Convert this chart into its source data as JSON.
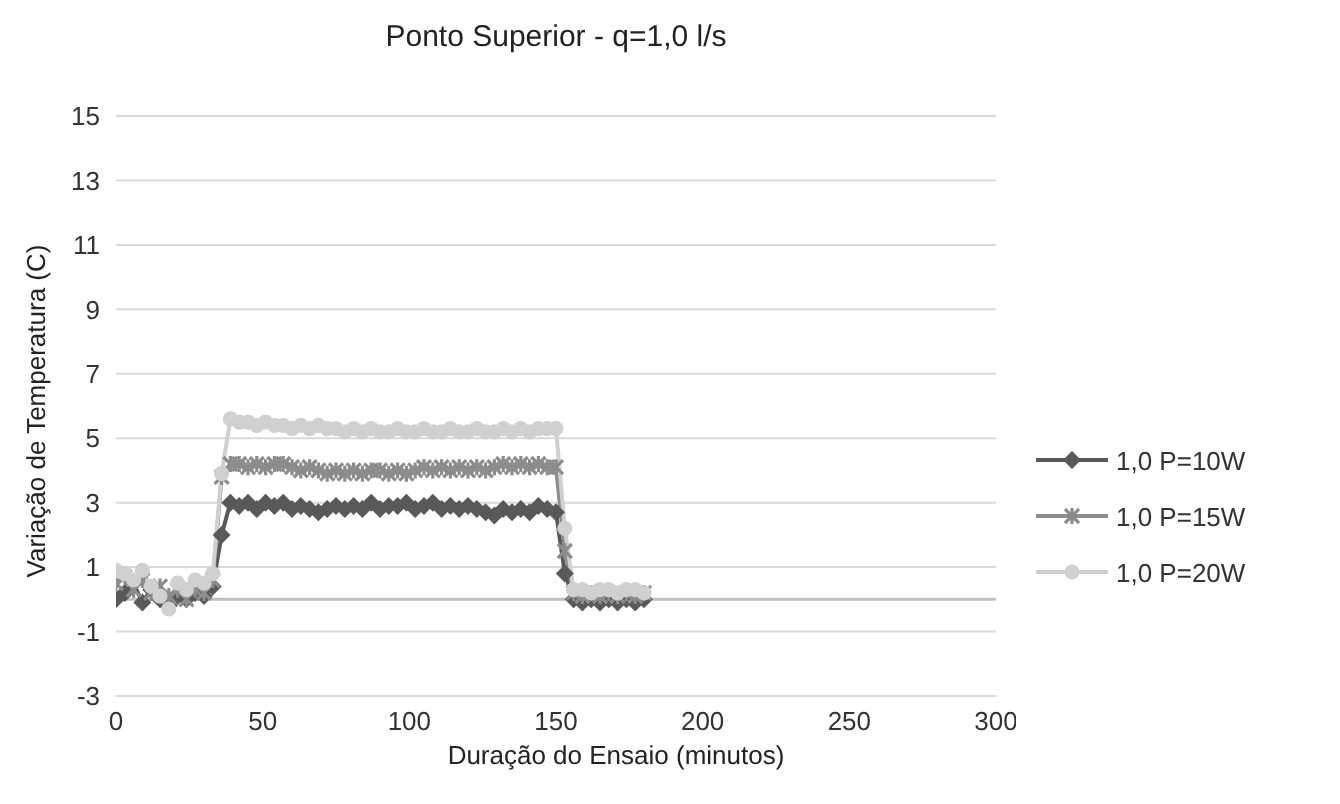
{
  "chart_data": {
    "type": "line",
    "title": "Ponto Superior - q=1,0 l/s",
    "xlabel": "Duração do Ensaio (minutos)",
    "ylabel": "Variação de Temperatura (C)",
    "x": [
      0,
      3,
      6,
      9,
      12,
      15,
      18,
      21,
      24,
      27,
      30,
      33,
      36,
      39,
      42,
      45,
      48,
      51,
      54,
      57,
      60,
      63,
      66,
      69,
      72,
      75,
      78,
      81,
      84,
      87,
      90,
      93,
      96,
      99,
      102,
      105,
      108,
      111,
      114,
      117,
      120,
      123,
      126,
      129,
      132,
      135,
      138,
      141,
      144,
      147,
      150,
      153,
      156,
      159,
      162,
      165,
      168,
      171,
      174,
      177,
      180
    ],
    "series": [
      {
        "name": "1,0 P=10W",
        "color": "#595959",
        "marker": "diamond",
        "values": [
          0.0,
          0.2,
          0.5,
          -0.1,
          0.3,
          0.0,
          -0.2,
          0.1,
          0.0,
          0.2,
          0.1,
          0.4,
          2.0,
          3.0,
          2.9,
          3.0,
          2.8,
          3.0,
          2.9,
          3.0,
          2.8,
          2.9,
          2.8,
          2.7,
          2.8,
          2.9,
          2.8,
          2.9,
          2.8,
          3.0,
          2.8,
          2.9,
          2.9,
          3.0,
          2.8,
          2.9,
          3.0,
          2.8,
          2.9,
          2.8,
          2.9,
          2.8,
          2.7,
          2.6,
          2.8,
          2.7,
          2.8,
          2.7,
          2.9,
          2.8,
          2.7,
          0.8,
          0.0,
          -0.1,
          0.0,
          -0.1,
          0.0,
          -0.1,
          0.0,
          -0.1,
          0.0
        ]
      },
      {
        "name": "1,0 P=15W",
        "color": "#8c8c8c",
        "marker": "cross",
        "values": [
          0.5,
          0.7,
          0.3,
          0.6,
          0.2,
          0.4,
          0.1,
          0.3,
          0.0,
          0.3,
          0.2,
          0.6,
          3.8,
          4.2,
          4.2,
          4.1,
          4.2,
          4.1,
          4.2,
          4.2,
          4.1,
          4.0,
          4.1,
          4.0,
          3.9,
          4.0,
          3.9,
          4.0,
          3.9,
          4.0,
          4.0,
          3.9,
          4.0,
          3.9,
          4.0,
          4.1,
          4.0,
          4.1,
          4.0,
          4.1,
          4.0,
          4.1,
          4.0,
          4.1,
          4.2,
          4.1,
          4.2,
          4.1,
          4.2,
          4.1,
          4.1,
          1.5,
          0.2,
          0.1,
          0.2,
          0.1,
          0.2,
          0.1,
          0.2,
          0.1,
          0.2
        ]
      },
      {
        "name": "1,0 P=20W",
        "color": "#d0d0d0",
        "marker": "circle",
        "values": [
          0.9,
          0.8,
          0.6,
          0.9,
          0.4,
          0.1,
          -0.3,
          0.5,
          0.3,
          0.6,
          0.5,
          0.8,
          3.9,
          5.6,
          5.5,
          5.5,
          5.4,
          5.5,
          5.4,
          5.4,
          5.3,
          5.4,
          5.3,
          5.4,
          5.3,
          5.3,
          5.2,
          5.3,
          5.2,
          5.3,
          5.2,
          5.2,
          5.3,
          5.2,
          5.2,
          5.3,
          5.2,
          5.2,
          5.3,
          5.2,
          5.2,
          5.3,
          5.2,
          5.2,
          5.3,
          5.2,
          5.3,
          5.2,
          5.3,
          5.3,
          5.3,
          2.2,
          0.3,
          0.3,
          0.2,
          0.3,
          0.3,
          0.2,
          0.3,
          0.3,
          0.2
        ]
      }
    ],
    "xlim": [
      0,
      300
    ],
    "xticks": [
      0,
      50,
      100,
      150,
      200,
      250,
      300
    ],
    "ylim": [
      -3,
      15
    ],
    "yticks": [
      -3,
      -1,
      1,
      3,
      5,
      7,
      9,
      11,
      13,
      15
    ],
    "ref_lines": [
      {
        "axis": "y",
        "value": 0,
        "color": "#bfbfbf"
      }
    ],
    "grid": "y",
    "legend": "right",
    "line_style": "solid"
  }
}
